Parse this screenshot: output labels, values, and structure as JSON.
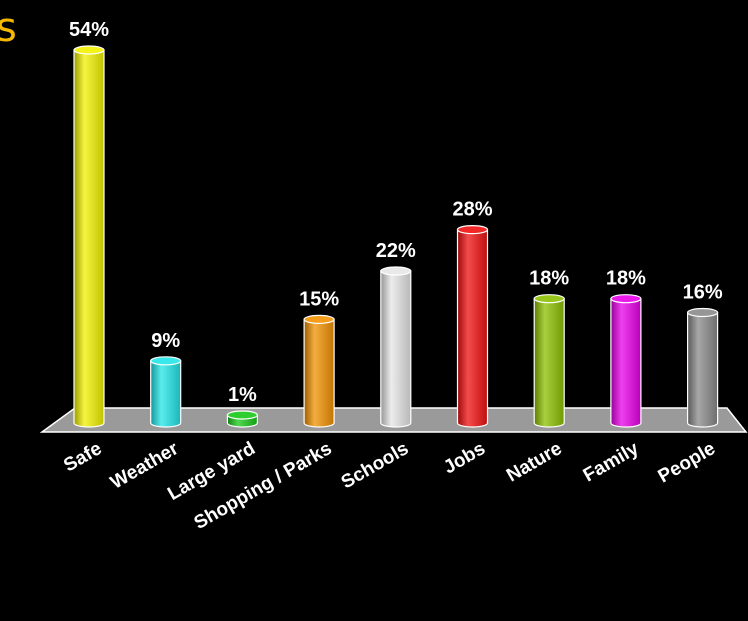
{
  "title_fragment": "s",
  "chart_data": {
    "type": "bar",
    "title": "",
    "xlabel": "",
    "ylabel": "",
    "ylim": [
      0,
      54
    ],
    "grid": false,
    "categories": [
      "Safe",
      "Weather",
      "Large yard",
      "Shopping / Parks",
      "Schools",
      "Jobs",
      "Nature",
      "Family",
      "People"
    ],
    "values": [
      54,
      9,
      1,
      15,
      22,
      28,
      18,
      18,
      16
    ],
    "value_labels": [
      "54%",
      "9%",
      "1%",
      "15%",
      "22%",
      "28%",
      "18%",
      "18%",
      "16%"
    ],
    "colors": [
      "#f2f200",
      "#22e5e8",
      "#18c818",
      "#f29200",
      "#e6e6e6",
      "#f01010",
      "#8cc000",
      "#e800e8",
      "#8a8a8a"
    ]
  }
}
